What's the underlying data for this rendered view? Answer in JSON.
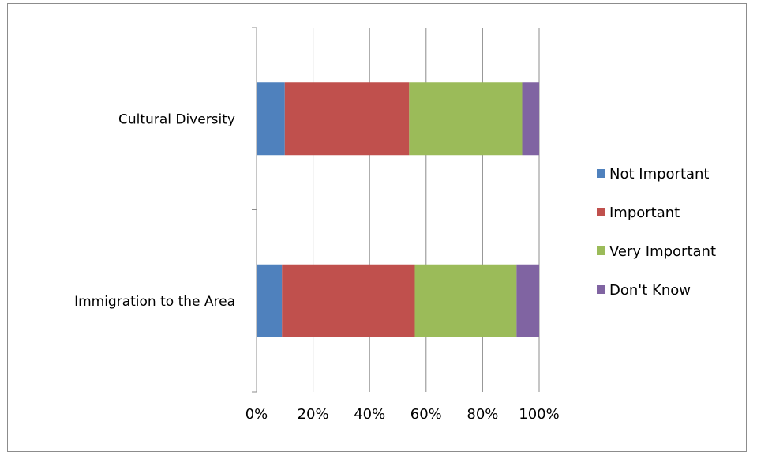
{
  "chart_data": {
    "type": "bar",
    "orientation": "horizontal",
    "stacked": "percent",
    "title": "",
    "xlabel": "",
    "ylabel": "",
    "categories": [
      "Cultural Diversity",
      "Immigration to the Area"
    ],
    "series": [
      {
        "name": "Not Important",
        "color": "#4f81bd",
        "values": [
          10,
          9
        ]
      },
      {
        "name": "Important",
        "color": "#c0504d",
        "values": [
          44,
          47
        ]
      },
      {
        "name": "Very Important",
        "color": "#9bbb59",
        "values": [
          40,
          36
        ]
      },
      {
        "name": "Don't Know",
        "color": "#8064a2",
        "values": [
          6,
          8
        ]
      }
    ],
    "x_ticks": [
      "0%",
      "20%",
      "40%",
      "60%",
      "80%",
      "100%"
    ],
    "xlim": [
      0,
      100
    ],
    "grid": true,
    "legend": "right"
  }
}
